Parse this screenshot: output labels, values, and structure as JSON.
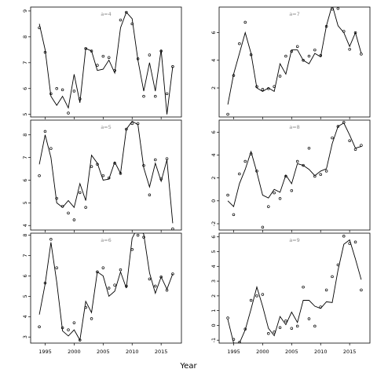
{
  "xlabel": "Year",
  "chart_data": [
    {
      "type": "line",
      "panel_label": "a=4",
      "x": [
        1994,
        1995,
        1996,
        1997,
        1998,
        1999,
        2000,
        2001,
        2002,
        2003,
        2004,
        2005,
        2006,
        2007,
        2008,
        2009,
        2010,
        2011,
        2012,
        2013,
        2014,
        2015,
        2016,
        2017
      ],
      "series": [
        {
          "values": [
            8.5,
            7.5,
            5.7,
            5.35,
            5.7,
            5.25,
            6.55,
            5.45,
            7.55,
            7.45,
            6.7,
            6.75,
            7.1,
            6.6,
            8.35,
            8.95,
            8.7,
            7.1,
            5.9,
            7.0,
            5.9,
            7.5,
            5.0,
            6.85
          ]
        }
      ],
      "points": [
        {
          "x": 1994,
          "y": 8.35
        },
        {
          "x": 1995,
          "y": 7.4
        },
        {
          "x": 1996,
          "y": 5.8
        },
        {
          "x": 1997,
          "y": 6.0
        },
        {
          "x": 1998,
          "y": 5.95
        },
        {
          "x": 1999,
          "y": 5.05
        },
        {
          "x": 2000,
          "y": 5.9
        },
        {
          "x": 2001,
          "y": 5.6
        },
        {
          "x": 2002,
          "y": 7.55
        },
        {
          "x": 2003,
          "y": 7.45
        },
        {
          "x": 2004,
          "y": 6.9
        },
        {
          "x": 2005,
          "y": 7.25
        },
        {
          "x": 2006,
          "y": 7.2
        },
        {
          "x": 2007,
          "y": 6.7
        },
        {
          "x": 2008,
          "y": 8.65
        },
        {
          "x": 2009,
          "y": 8.95
        },
        {
          "x": 2010,
          "y": 8.5
        },
        {
          "x": 2011,
          "y": 7.15
        },
        {
          "x": 2012,
          "y": 5.7
        },
        {
          "x": 2013,
          "y": 7.3
        },
        {
          "x": 2014,
          "y": 5.7
        },
        {
          "x": 2015,
          "y": 7.45
        },
        {
          "x": 2016,
          "y": 5.8
        },
        {
          "x": 2017,
          "y": 6.85
        }
      ],
      "ylim": [
        4.9,
        9.15
      ],
      "yticks": [
        5,
        6,
        7,
        8,
        9
      ]
    },
    {
      "type": "line",
      "panel_label": "a=7",
      "x": [
        1994,
        1995,
        1996,
        1997,
        1998,
        1999,
        2000,
        2001,
        2002,
        2003,
        2004,
        2005,
        2006,
        2007,
        2008,
        2009,
        2010,
        2011,
        2012,
        2013,
        2014,
        2015,
        2016,
        2017
      ],
      "series": [
        {
          "values": [
            0.8,
            3.0,
            4.5,
            6.0,
            4.5,
            2.0,
            1.75,
            2.0,
            1.75,
            3.75,
            3.0,
            4.75,
            4.75,
            4.0,
            3.75,
            4.5,
            4.25,
            6.5,
            8.0,
            6.5,
            6.0,
            5.0,
            6.0,
            4.5
          ]
        }
      ],
      "points": [
        {
          "x": 1994,
          "y": 0.1
        },
        {
          "x": 1995,
          "y": 2.9
        },
        {
          "x": 1996,
          "y": 5.2
        },
        {
          "x": 1997,
          "y": 6.75
        },
        {
          "x": 1998,
          "y": 4.4
        },
        {
          "x": 1999,
          "y": 2.1
        },
        {
          "x": 2000,
          "y": 1.9
        },
        {
          "x": 2001,
          "y": 1.95
        },
        {
          "x": 2002,
          "y": 2.1
        },
        {
          "x": 2003,
          "y": 2.85
        },
        {
          "x": 2004,
          "y": 4.3
        },
        {
          "x": 2005,
          "y": 4.65
        },
        {
          "x": 2006,
          "y": 5.0
        },
        {
          "x": 2007,
          "y": 4.0
        },
        {
          "x": 2008,
          "y": 4.3
        },
        {
          "x": 2009,
          "y": 4.75
        },
        {
          "x": 2010,
          "y": 4.35
        },
        {
          "x": 2011,
          "y": 6.45
        },
        {
          "x": 2012,
          "y": 7.7
        },
        {
          "x": 2013,
          "y": 7.75
        },
        {
          "x": 2014,
          "y": 6.1
        },
        {
          "x": 2015,
          "y": 4.8
        },
        {
          "x": 2016,
          "y": 6.0
        },
        {
          "x": 2017,
          "y": 4.45
        }
      ],
      "ylim": [
        -0.1,
        7.85
      ],
      "yticks": [
        2,
        4,
        6
      ]
    },
    {
      "type": "line",
      "panel_label": "a=5",
      "x": [
        1994,
        1995,
        1996,
        1997,
        1998,
        1999,
        2000,
        2001,
        2002,
        2003,
        2004,
        2005,
        2006,
        2007,
        2008,
        2009,
        2010,
        2011,
        2012,
        2013,
        2014,
        2015,
        2016,
        2017
      ],
      "series": [
        {
          "values": [
            6.7,
            8.0,
            7.0,
            5.0,
            4.8,
            5.1,
            4.8,
            5.85,
            5.1,
            7.1,
            6.75,
            6.0,
            6.05,
            6.8,
            6.3,
            8.25,
            8.6,
            8.45,
            6.55,
            5.7,
            6.75,
            5.95,
            6.9,
            4.1
          ]
        }
      ],
      "points": [
        {
          "x": 1994,
          "y": 6.2
        },
        {
          "x": 1995,
          "y": 8.15
        },
        {
          "x": 1996,
          "y": 7.4
        },
        {
          "x": 1997,
          "y": 5.2
        },
        {
          "x": 1998,
          "y": 4.85
        },
        {
          "x": 1999,
          "y": 4.55
        },
        {
          "x": 2000,
          "y": 4.25
        },
        {
          "x": 2001,
          "y": 5.45
        },
        {
          "x": 2002,
          "y": 4.8
        },
        {
          "x": 2003,
          "y": 6.6
        },
        {
          "x": 2004,
          "y": 6.7
        },
        {
          "x": 2005,
          "y": 6.2
        },
        {
          "x": 2006,
          "y": 6.1
        },
        {
          "x": 2007,
          "y": 6.75
        },
        {
          "x": 2008,
          "y": 6.3
        },
        {
          "x": 2009,
          "y": 8.25
        },
        {
          "x": 2010,
          "y": 8.5
        },
        {
          "x": 2011,
          "y": 8.5
        },
        {
          "x": 2012,
          "y": 6.65
        },
        {
          "x": 2013,
          "y": 5.35
        },
        {
          "x": 2014,
          "y": 6.9
        },
        {
          "x": 2015,
          "y": 6.05
        },
        {
          "x": 2016,
          "y": 6.95
        },
        {
          "x": 2017,
          "y": 3.85
        }
      ],
      "ylim": [
        3.8,
        8.65
      ],
      "yticks": [
        4,
        5,
        6,
        7,
        8
      ]
    },
    {
      "type": "line",
      "panel_label": "a=8",
      "x": [
        1994,
        1995,
        1996,
        1997,
        1998,
        1999,
        2000,
        2001,
        2002,
        2003,
        2004,
        2005,
        2006,
        2007,
        2008,
        2009,
        2010,
        2011,
        2012,
        2013,
        2014,
        2015,
        2016,
        2017
      ],
      "series": [
        {
          "values": [
            0.0,
            -0.5,
            1.5,
            2.75,
            4.3,
            2.5,
            0.5,
            0.25,
            1.0,
            0.75,
            2.25,
            1.5,
            3.25,
            3.1,
            2.75,
            2.2,
            2.6,
            2.8,
            5.0,
            6.5,
            6.8,
            5.75,
            4.6,
            4.75
          ]
        }
      ],
      "points": [
        {
          "x": 1994,
          "y": 0.5
        },
        {
          "x": 1995,
          "y": -1.2
        },
        {
          "x": 1996,
          "y": 2.35
        },
        {
          "x": 1997,
          "y": 3.45
        },
        {
          "x": 1998,
          "y": 4.1
        },
        {
          "x": 1999,
          "y": 2.6
        },
        {
          "x": 2000,
          "y": -2.3
        },
        {
          "x": 2001,
          "y": -0.5
        },
        {
          "x": 2002,
          "y": 0.7
        },
        {
          "x": 2003,
          "y": 0.2
        },
        {
          "x": 2004,
          "y": 2.15
        },
        {
          "x": 2005,
          "y": 0.9
        },
        {
          "x": 2006,
          "y": 3.45
        },
        {
          "x": 2007,
          "y": 3.1
        },
        {
          "x": 2008,
          "y": 4.6
        },
        {
          "x": 2009,
          "y": 2.15
        },
        {
          "x": 2010,
          "y": 2.3
        },
        {
          "x": 2011,
          "y": 2.6
        },
        {
          "x": 2012,
          "y": 5.5
        },
        {
          "x": 2013,
          "y": 6.5
        },
        {
          "x": 2014,
          "y": 6.85
        },
        {
          "x": 2015,
          "y": 5.25
        },
        {
          "x": 2016,
          "y": 4.5
        },
        {
          "x": 2017,
          "y": 4.85
        }
      ],
      "ylim": [
        -2.55,
        7.05
      ],
      "yticks": [
        -2,
        0,
        2,
        4,
        6
      ]
    },
    {
      "type": "line",
      "panel_label": "a=6",
      "x": [
        1994,
        1995,
        1996,
        1997,
        1998,
        1999,
        2000,
        2001,
        2002,
        2003,
        2004,
        2005,
        2006,
        2007,
        2008,
        2009,
        2010,
        2011,
        2012,
        2013,
        2014,
        2015,
        2016,
        2017
      ],
      "series": [
        {
          "values": [
            4.1,
            5.6,
            7.65,
            5.7,
            3.3,
            3.05,
            3.35,
            2.85,
            4.75,
            4.2,
            6.2,
            6.0,
            5.0,
            5.25,
            6.2,
            5.4,
            7.85,
            8.4,
            8.05,
            6.15,
            5.15,
            5.95,
            5.35,
            6.1
          ]
        }
      ],
      "points": [
        {
          "x": 1994,
          "y": 3.5
        },
        {
          "x": 1995,
          "y": 5.65
        },
        {
          "x": 1996,
          "y": 7.8
        },
        {
          "x": 1997,
          "y": 6.4
        },
        {
          "x": 1998,
          "y": 3.45
        },
        {
          "x": 1999,
          "y": 3.35
        },
        {
          "x": 2000,
          "y": 3.7
        },
        {
          "x": 2001,
          "y": 2.85
        },
        {
          "x": 2002,
          "y": 4.45
        },
        {
          "x": 2003,
          "y": 3.9
        },
        {
          "x": 2004,
          "y": 6.2
        },
        {
          "x": 2005,
          "y": 6.4
        },
        {
          "x": 2006,
          "y": 5.4
        },
        {
          "x": 2007,
          "y": 5.55
        },
        {
          "x": 2008,
          "y": 6.3
        },
        {
          "x": 2009,
          "y": 5.5
        },
        {
          "x": 2010,
          "y": 7.3
        },
        {
          "x": 2011,
          "y": 8.0
        },
        {
          "x": 2012,
          "y": 7.9
        },
        {
          "x": 2013,
          "y": 5.85
        },
        {
          "x": 2014,
          "y": 5.5
        },
        {
          "x": 2015,
          "y": 5.95
        },
        {
          "x": 2016,
          "y": 5.3
        },
        {
          "x": 2017,
          "y": 6.1
        }
      ],
      "ylim": [
        2.7,
        8.1
      ],
      "yticks": [
        3,
        4,
        5,
        6,
        7,
        8
      ]
    },
    {
      "type": "line",
      "panel_label": "a=9",
      "x": [
        1994,
        1995,
        1996,
        1997,
        1998,
        1999,
        2000,
        2001,
        2002,
        2003,
        2004,
        2005,
        2006,
        2007,
        2008,
        2009,
        2010,
        2011,
        2012,
        2013,
        2014,
        2015,
        2016,
        2017
      ],
      "series": [
        {
          "values": [
            0.4,
            -1.2,
            -1.2,
            -0.3,
            1.1,
            2.6,
            1.3,
            -0.2,
            -0.7,
            0.6,
            0.05,
            0.9,
            0.2,
            1.7,
            1.7,
            1.3,
            1.15,
            1.6,
            1.55,
            3.75,
            5.5,
            5.8,
            4.5,
            3.1
          ]
        }
      ],
      "points": [
        {
          "x": 1994,
          "y": 0.5
        },
        {
          "x": 1995,
          "y": -0.95
        },
        {
          "x": 1996,
          "y": -1.15
        },
        {
          "x": 1997,
          "y": -0.25
        },
        {
          "x": 1998,
          "y": 1.7
        },
        {
          "x": 1999,
          "y": 2.0
        },
        {
          "x": 2000,
          "y": 2.1
        },
        {
          "x": 2001,
          "y": -0.55
        },
        {
          "x": 2002,
          "y": -0.45
        },
        {
          "x": 2003,
          "y": -0.15
        },
        {
          "x": 2004,
          "y": 0.3
        },
        {
          "x": 2005,
          "y": -0.2
        },
        {
          "x": 2006,
          "y": -0.05
        },
        {
          "x": 2007,
          "y": 2.6
        },
        {
          "x": 2008,
          "y": 0.45
        },
        {
          "x": 2009,
          "y": -0.05
        },
        {
          "x": 2010,
          "y": 1.25
        },
        {
          "x": 2011,
          "y": 2.4
        },
        {
          "x": 2012,
          "y": 3.3
        },
        {
          "x": 2013,
          "y": 4.1
        },
        {
          "x": 2014,
          "y": 6.05
        },
        {
          "x": 2015,
          "y": 5.55
        },
        {
          "x": 2016,
          "y": 5.65
        },
        {
          "x": 2017,
          "y": 2.4
        }
      ],
      "ylim": [
        -1.2,
        6.25
      ],
      "yticks": [
        -1,
        0,
        1,
        2,
        3,
        4,
        5,
        6
      ]
    }
  ],
  "xticks": [
    1995,
    2000,
    2005,
    2010,
    2015
  ],
  "xlim": [
    1992.5,
    2018.5
  ]
}
